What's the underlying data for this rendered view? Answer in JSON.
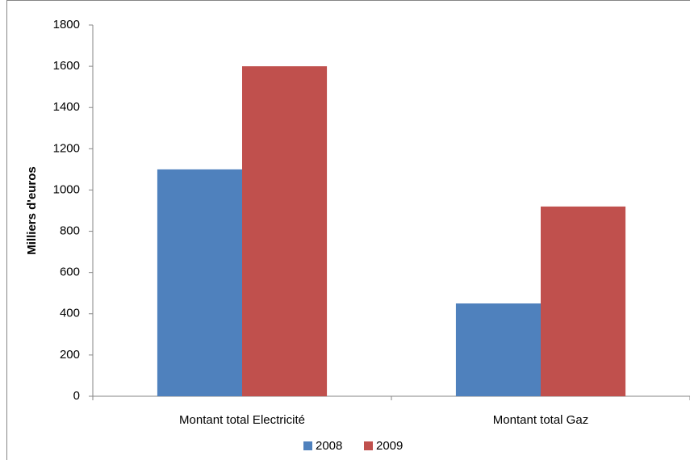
{
  "chart_data": {
    "type": "bar",
    "categories": [
      "Montant total Electricité",
      "Montant total Gaz"
    ],
    "series": [
      {
        "name": "2008",
        "color": "#4f81bd",
        "values": [
          1100,
          450
        ]
      },
      {
        "name": "2009",
        "color": "#c0504d",
        "values": [
          1600,
          920
        ]
      }
    ],
    "y_label": "Milliers d'euros",
    "ylim": [
      0,
      1800
    ],
    "yticks": [
      0,
      200,
      400,
      600,
      800,
      1000,
      1200,
      1400,
      1600,
      1800
    ],
    "grid": false,
    "legend": "bottom"
  }
}
